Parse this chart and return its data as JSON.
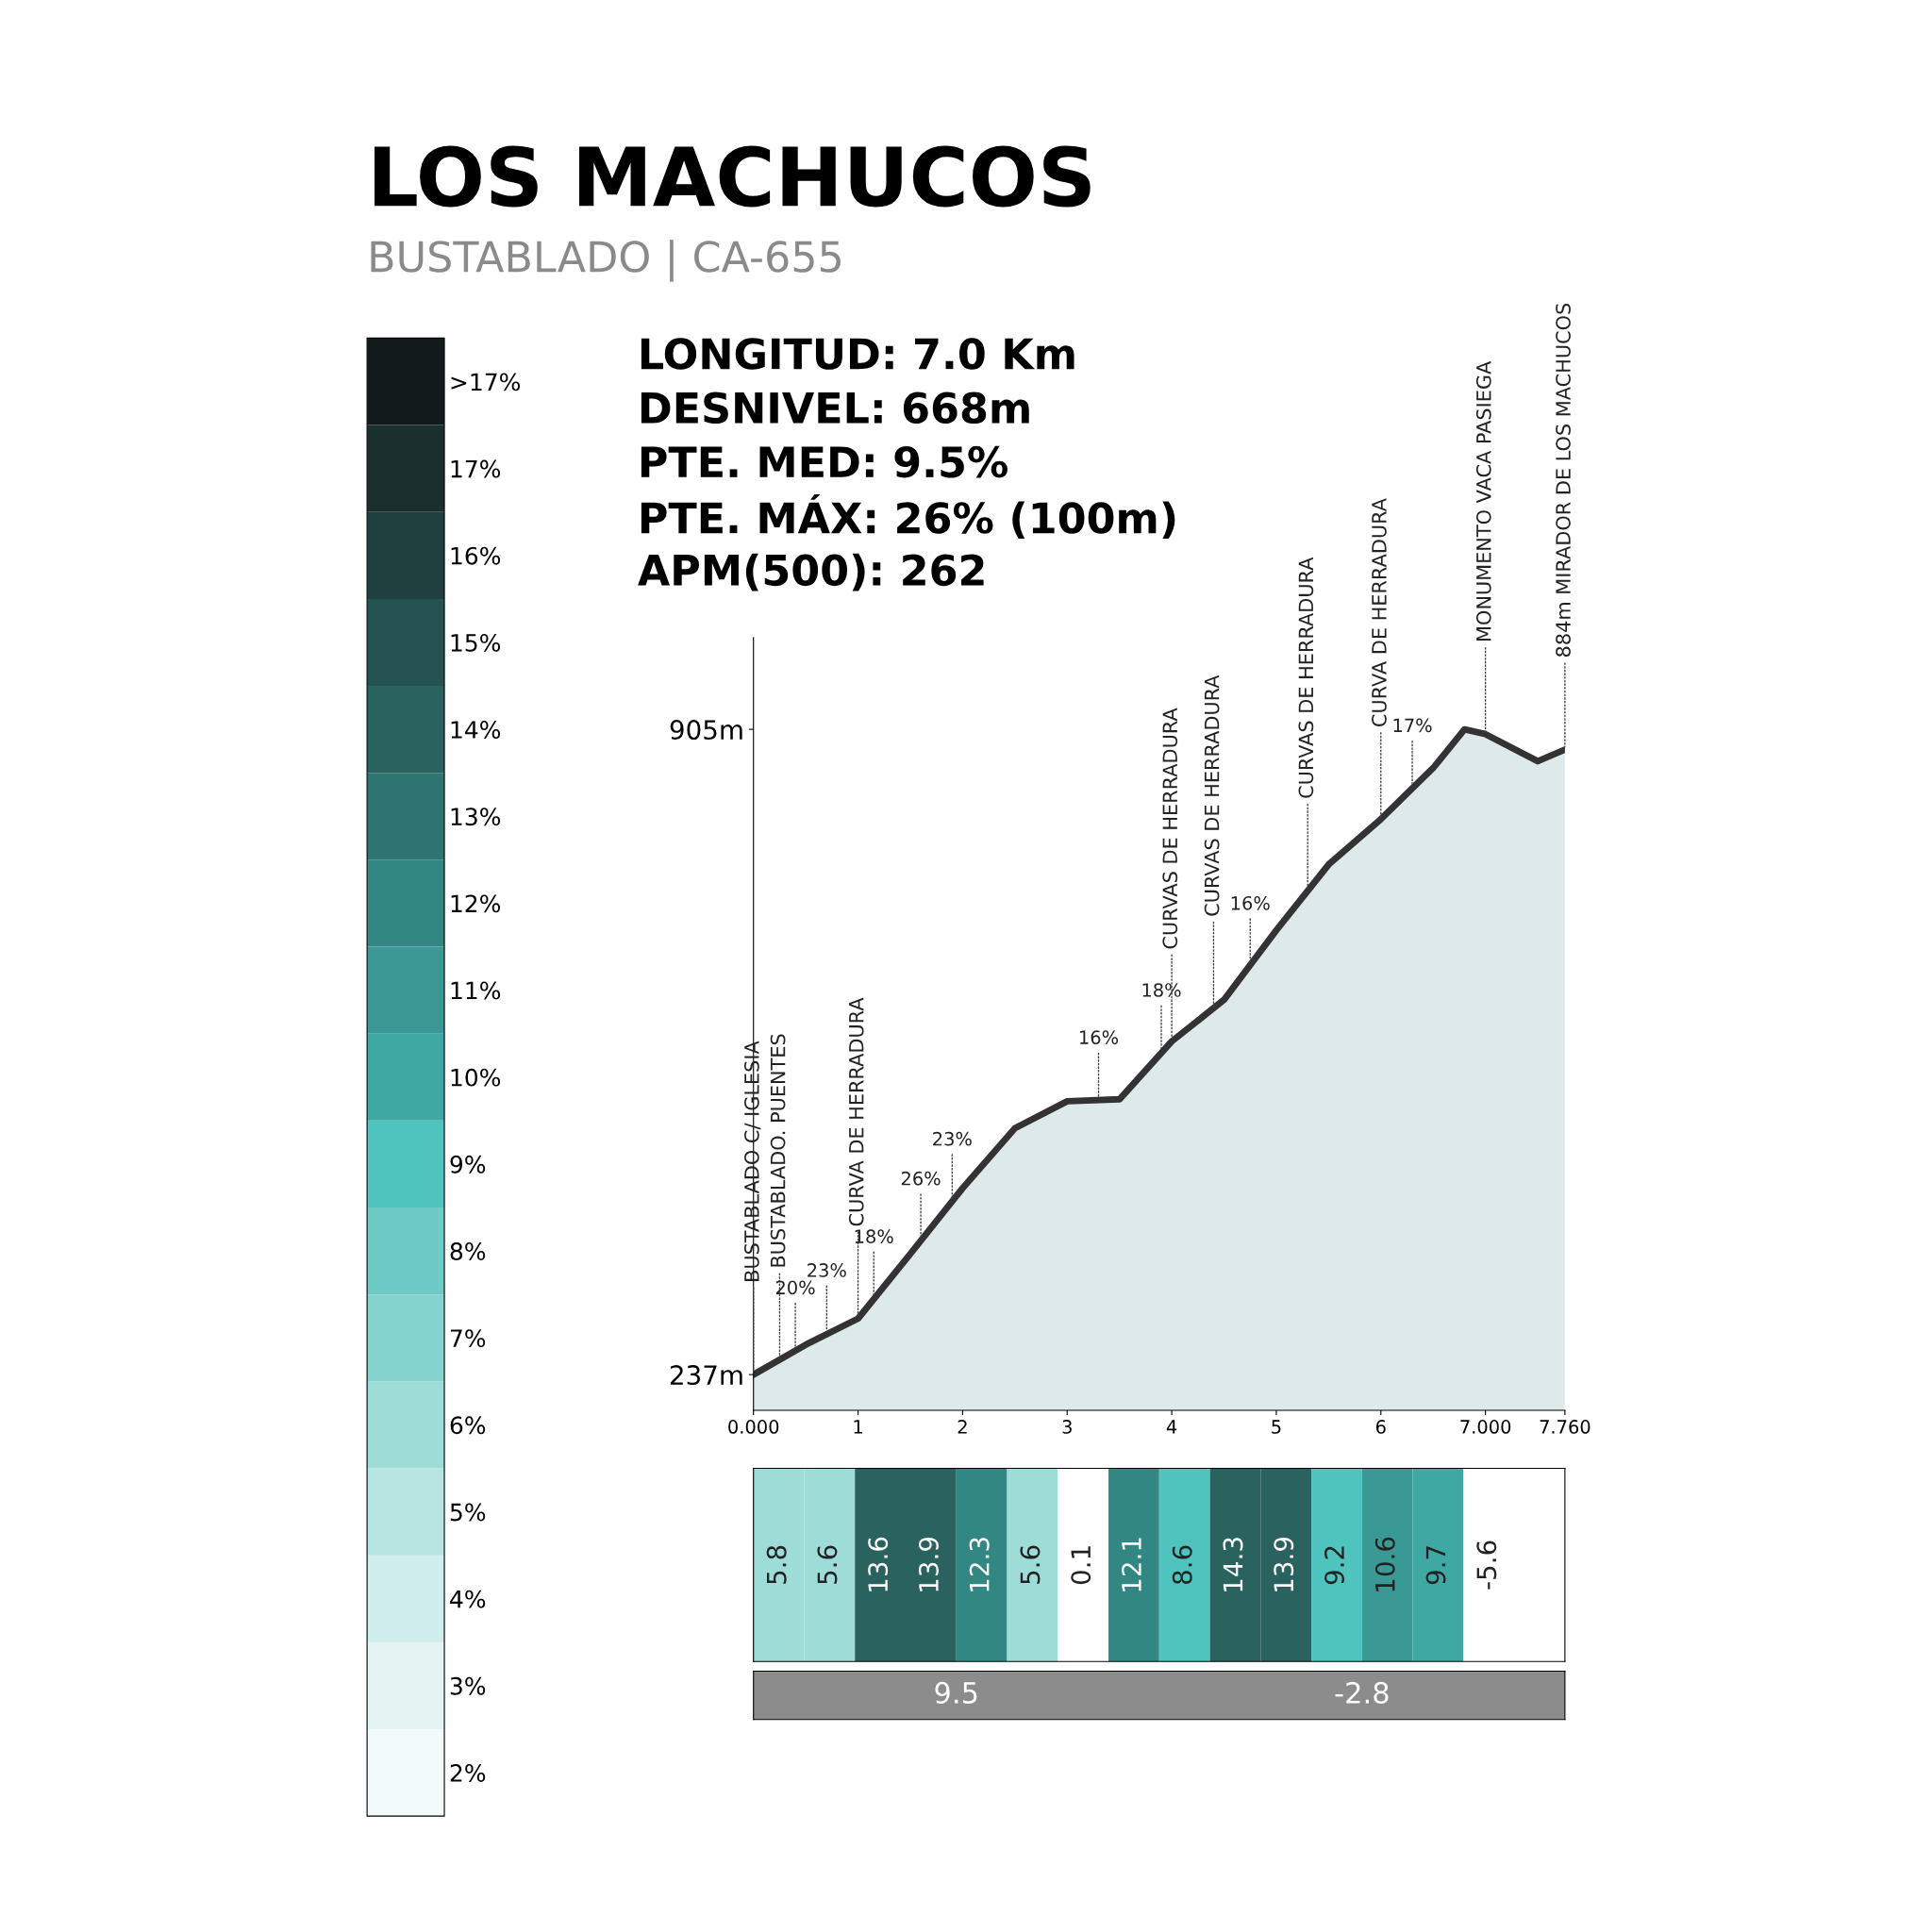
{
  "chart_data": [
    {
      "type": "area",
      "title": "LOS MACHUCOS",
      "subtitle": "BUSTABLADO | CA-655",
      "x": [
        0,
        0.5,
        1.0,
        1.5,
        2.0,
        2.5,
        3.0,
        3.5,
        4.0,
        4.5,
        5.0,
        5.5,
        6.0,
        6.5,
        6.8,
        7.0,
        7.5,
        7.76
      ],
      "series": [
        {
          "color": "#dde9ea",
          "values": [
            237,
            268,
            295,
            362,
            430,
            492,
            520,
            522,
            582,
            625,
            697,
            765,
            812,
            865,
            905,
            900,
            872,
            884
          ]
        }
      ],
      "xlim": [
        0,
        7.76
      ],
      "xticks": [
        {
          "value": 0,
          "label": "0.000"
        },
        1,
        2,
        3,
        4,
        5,
        6,
        {
          "value": 7,
          "label": "7.000"
        },
        {
          "value": 7.76,
          "label": "7.760"
        }
      ],
      "ylim": [
        200,
        1000
      ],
      "yticks": [
        {
          "value": 237,
          "label": "237m"
        },
        {
          "value": 905,
          "label": "905m"
        }
      ],
      "annotations": [
        "LONGITUD: 7.0 Km",
        "DESNIVEL: 668m",
        "PTE. MED: 9.5%",
        "PTE. MÁX: 26% (100m)",
        "APM(500): 262",
        {
          "text": "BUSTABLADO C/ IGLESIA",
          "x": 0,
          "y": 237
        },
        {
          "text": "BUSTABLADO. PUENTES",
          "x": 0.25,
          "y": 252
        },
        {
          "text": "20%",
          "x": 0.4,
          "y": 262
        },
        {
          "text": "23%",
          "x": 0.7,
          "y": 280
        },
        {
          "text": "CURVA DE HERRADURA",
          "x": 1.0,
          "y": 295
        },
        {
          "text": "18%",
          "x": 1.15,
          "y": 315
        },
        {
          "text": "26%",
          "x": 1.6,
          "y": 375
        },
        {
          "text": "23%",
          "x": 1.9,
          "y": 416
        },
        {
          "text": "16%",
          "x": 3.3,
          "y": 521
        },
        {
          "text": "18%",
          "x": 3.9,
          "y": 570
        },
        {
          "text": "CURVAS DE HERRADURA",
          "x": 4.0,
          "y": 582
        },
        {
          "text": "CURVAS DE HERRADURA",
          "x": 4.4,
          "y": 616
        },
        {
          "text": "16%",
          "x": 4.75,
          "y": 660
        },
        {
          "text": "CURVAS DE HERRADURA",
          "x": 5.3,
          "y": 738
        },
        {
          "text": "CURVA DE HERRADURA",
          "x": 6.0,
          "y": 812
        },
        {
          "text": "17%",
          "x": 6.3,
          "y": 844
        },
        {
          "text": "MONUMENTO VACA PASIEGA",
          "x": 7.0,
          "y": 900
        },
        {
          "text": "884m MIRADOR DE LOS MACHUCOS",
          "x": 7.76,
          "y": 884
        }
      ]
    },
    {
      "type": "heatmap",
      "categories": [
        null,
        null,
        null,
        null,
        null,
        null,
        null,
        null,
        null,
        null,
        null,
        null,
        null,
        null,
        null,
        null
      ],
      "y_categories": [
        null
      ],
      "cells": [
        [
          5.8,
          5.6,
          13.6,
          13.9,
          12.3,
          5.6,
          0.1,
          12.1,
          8.6,
          14.3,
          13.9,
          9.2,
          10.6,
          9.7,
          -5.6,
          null
        ]
      ],
      "data_labels": true,
      "clim": [
        1.5,
        18.5
      ],
      "cticks": [
        {
          "value": 2,
          "label": "2%"
        },
        {
          "value": 3,
          "label": "3%"
        },
        {
          "value": 4,
          "label": "4%"
        },
        {
          "value": 5,
          "label": "5%"
        },
        {
          "value": 6,
          "label": "6%"
        },
        {
          "value": 7,
          "label": "7%"
        },
        {
          "value": 8,
          "label": "8%"
        },
        {
          "value": 9,
          "label": "9%"
        },
        {
          "value": 10,
          "label": "10%"
        },
        {
          "value": 11,
          "label": "11%"
        },
        {
          "value": 12,
          "label": "12%"
        },
        {
          "value": 13,
          "label": "13%"
        },
        {
          "value": 14,
          "label": "14%"
        },
        {
          "value": 15,
          "label": "15%"
        },
        {
          "value": 16,
          "label": "16%"
        },
        {
          "value": 17,
          "label": "17%"
        },
        {
          "value": 18,
          "label": ">17%"
        }
      ],
      "annotations": [
        "9.5",
        "-2.8"
      ]
    }
  ]
}
